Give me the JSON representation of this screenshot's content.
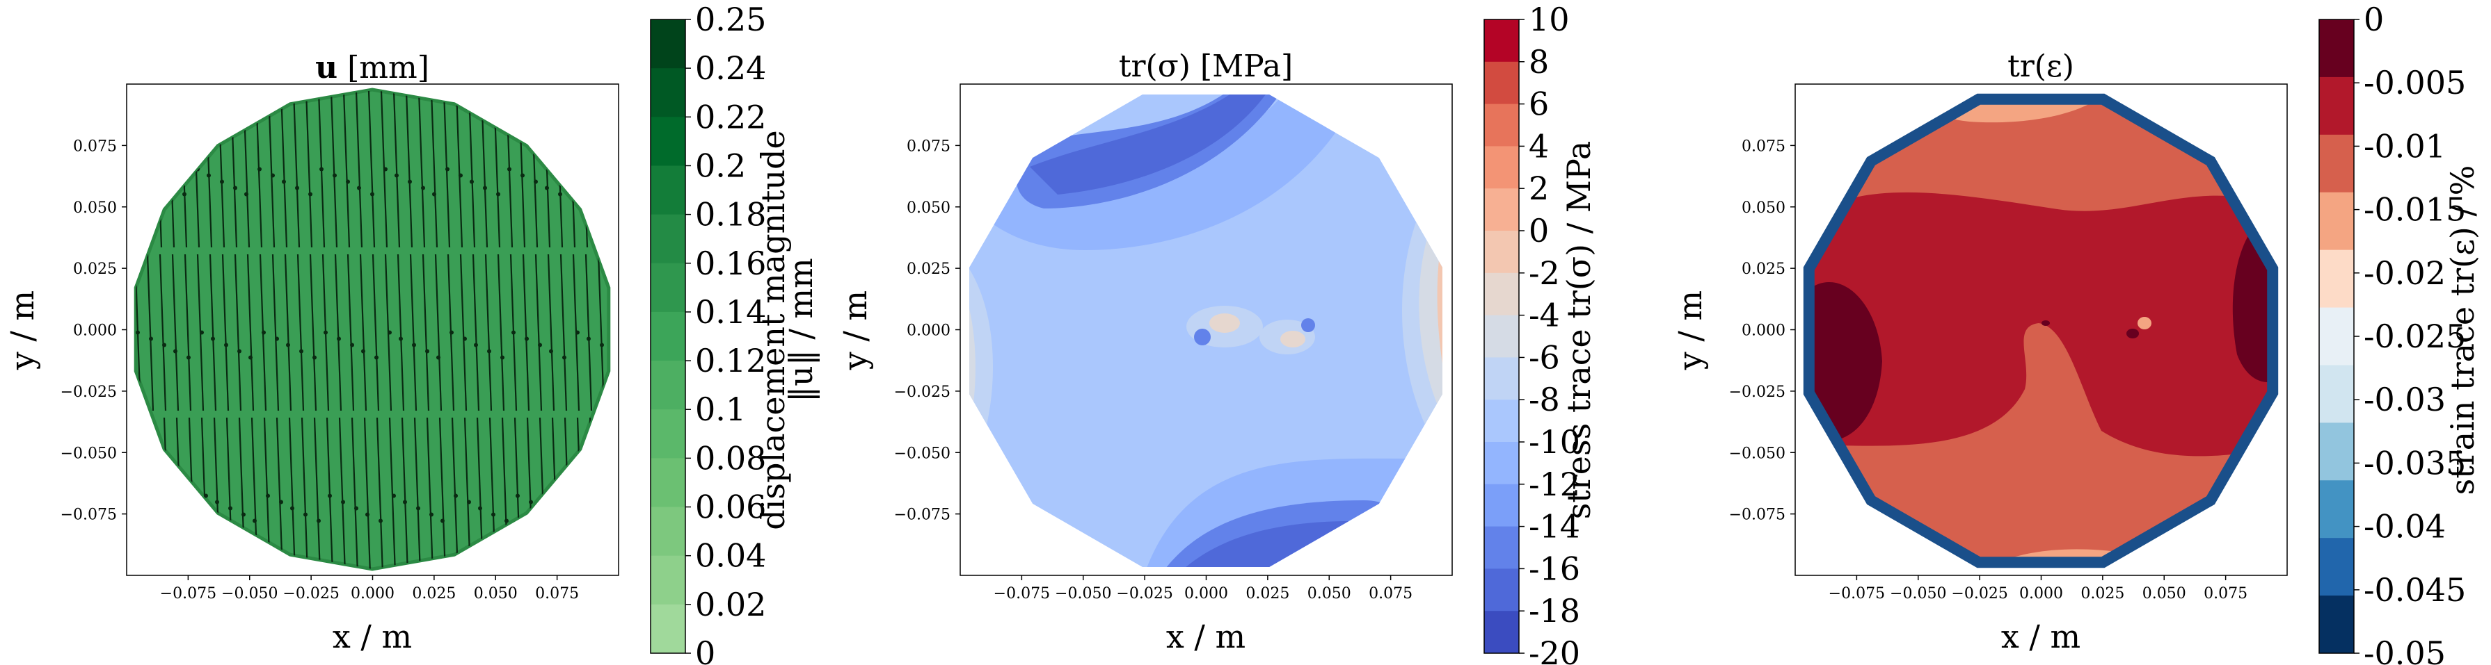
{
  "figure": {
    "panel_count": 3
  },
  "chart_data": [
    {
      "type": "contour",
      "title": "u [mm]",
      "title_bold_part": "u",
      "title_rest": " [mm]",
      "xlabel": "x / m",
      "ylabel": "y / m",
      "xlim": [
        -0.1,
        0.1
      ],
      "ylim": [
        -0.1,
        0.1
      ],
      "xticks": [
        -0.075,
        -0.05,
        -0.025,
        0.0,
        0.025,
        0.05,
        0.075
      ],
      "xtick_labels": [
        "−0.075",
        "−0.050",
        "−0.025",
        "0.000",
        "0.025",
        "0.050",
        "0.075"
      ],
      "yticks": [
        0.075,
        0.05,
        0.025,
        0.0,
        -0.025,
        -0.05,
        -0.075
      ],
      "ytick_labels": [
        "0.075",
        "0.050",
        "0.025",
        "0.000",
        "−0.025",
        "−0.050",
        "−0.075"
      ],
      "field_color": "#3a9e55",
      "field_edge_color": "#2b8a44",
      "quiver": true,
      "domain_polygon_sides": 18,
      "colorbar": {
        "label_line1": "displacement magnitude",
        "label_line2": "‖u‖ / mm",
        "levels": [
          "0.25",
          "0.24",
          "0.22",
          "0.2",
          "0.18",
          "0.16",
          "0.14",
          "0.12",
          "0.1",
          "0.08",
          "0.06",
          "0.04",
          "0.02",
          "0"
        ],
        "colors": [
          "#00441b",
          "#005924",
          "#006b2b",
          "#137d39",
          "#238b45",
          "#2f974e",
          "#3ca559",
          "#4daf62",
          "#5bb86a",
          "#6bc072",
          "#7dc87e",
          "#8ed08b",
          "#a0d99b"
        ]
      }
    },
    {
      "type": "contour",
      "title": "tr(σ) [MPa]",
      "xlabel": "x / m",
      "ylabel": "y / m",
      "xlim": [
        -0.1,
        0.1
      ],
      "ylim": [
        -0.1,
        0.1
      ],
      "xticks": [
        -0.075,
        -0.05,
        -0.025,
        0.0,
        0.025,
        0.05,
        0.075
      ],
      "xtick_labels": [
        "−0.075",
        "−0.050",
        "−0.025",
        "0.000",
        "0.025",
        "0.050",
        "0.075"
      ],
      "yticks": [
        0.075,
        0.05,
        0.025,
        0.0,
        -0.025,
        -0.05,
        -0.075
      ],
      "ytick_labels": [
        "0.075",
        "0.050",
        "0.025",
        "0.000",
        "−0.025",
        "−0.050",
        "−0.075"
      ],
      "domain_polygon_sides": 12,
      "colorbar": {
        "label": "stress trace tr(σ) / MPa",
        "levels": [
          "10",
          "8",
          "6",
          "4",
          "2",
          "0",
          "-2",
          "-4",
          "-6",
          "-8",
          "-10",
          "-12",
          "-14",
          "-16",
          "-18",
          "-20"
        ],
        "colors": [
          "#b40426",
          "#d24b40",
          "#e7745b",
          "#f39475",
          "#f7b093",
          "#f3c7b1",
          "#e6d7cf",
          "#d5dbe5",
          "#c0d4f5",
          "#aac7fd",
          "#93b5fe",
          "#7b9ff9",
          "#6282ea",
          "#4f69d9",
          "#3b4cc0"
        ]
      }
    },
    {
      "type": "contour",
      "title": "tr(ε)",
      "xlabel": "x / m",
      "ylabel": "y / m",
      "xlim": [
        -0.1,
        0.1
      ],
      "ylim": [
        -0.1,
        0.1
      ],
      "xticks": [
        -0.075,
        -0.05,
        -0.025,
        0.0,
        0.025,
        0.05,
        0.075
      ],
      "xtick_labels": [
        "−0.075",
        "−0.050",
        "−0.025",
        "0.000",
        "0.025",
        "0.050",
        "0.075"
      ],
      "yticks": [
        0.075,
        0.05,
        0.025,
        0.0,
        -0.025,
        -0.05,
        -0.075
      ],
      "ytick_labels": [
        "0.075",
        "0.050",
        "0.025",
        "0.000",
        "−0.025",
        "−0.050",
        "−0.075"
      ],
      "domain_polygon_sides": 12,
      "colorbar": {
        "label": "strain trace tr(ε) / %",
        "levels": [
          "0",
          "-0.005",
          "-0.01",
          "-0.015",
          "-0.02",
          "-0.025",
          "-0.03",
          "-0.035",
          "-0.04",
          "-0.045",
          "-0.05"
        ],
        "colors": [
          "#67001f",
          "#b2182b",
          "#d6604d",
          "#f4a582",
          "#fddbc7",
          "#e8f0f6",
          "#d1e5f0",
          "#92c5de",
          "#4393c3",
          "#2166ac",
          "#053061"
        ]
      }
    }
  ]
}
